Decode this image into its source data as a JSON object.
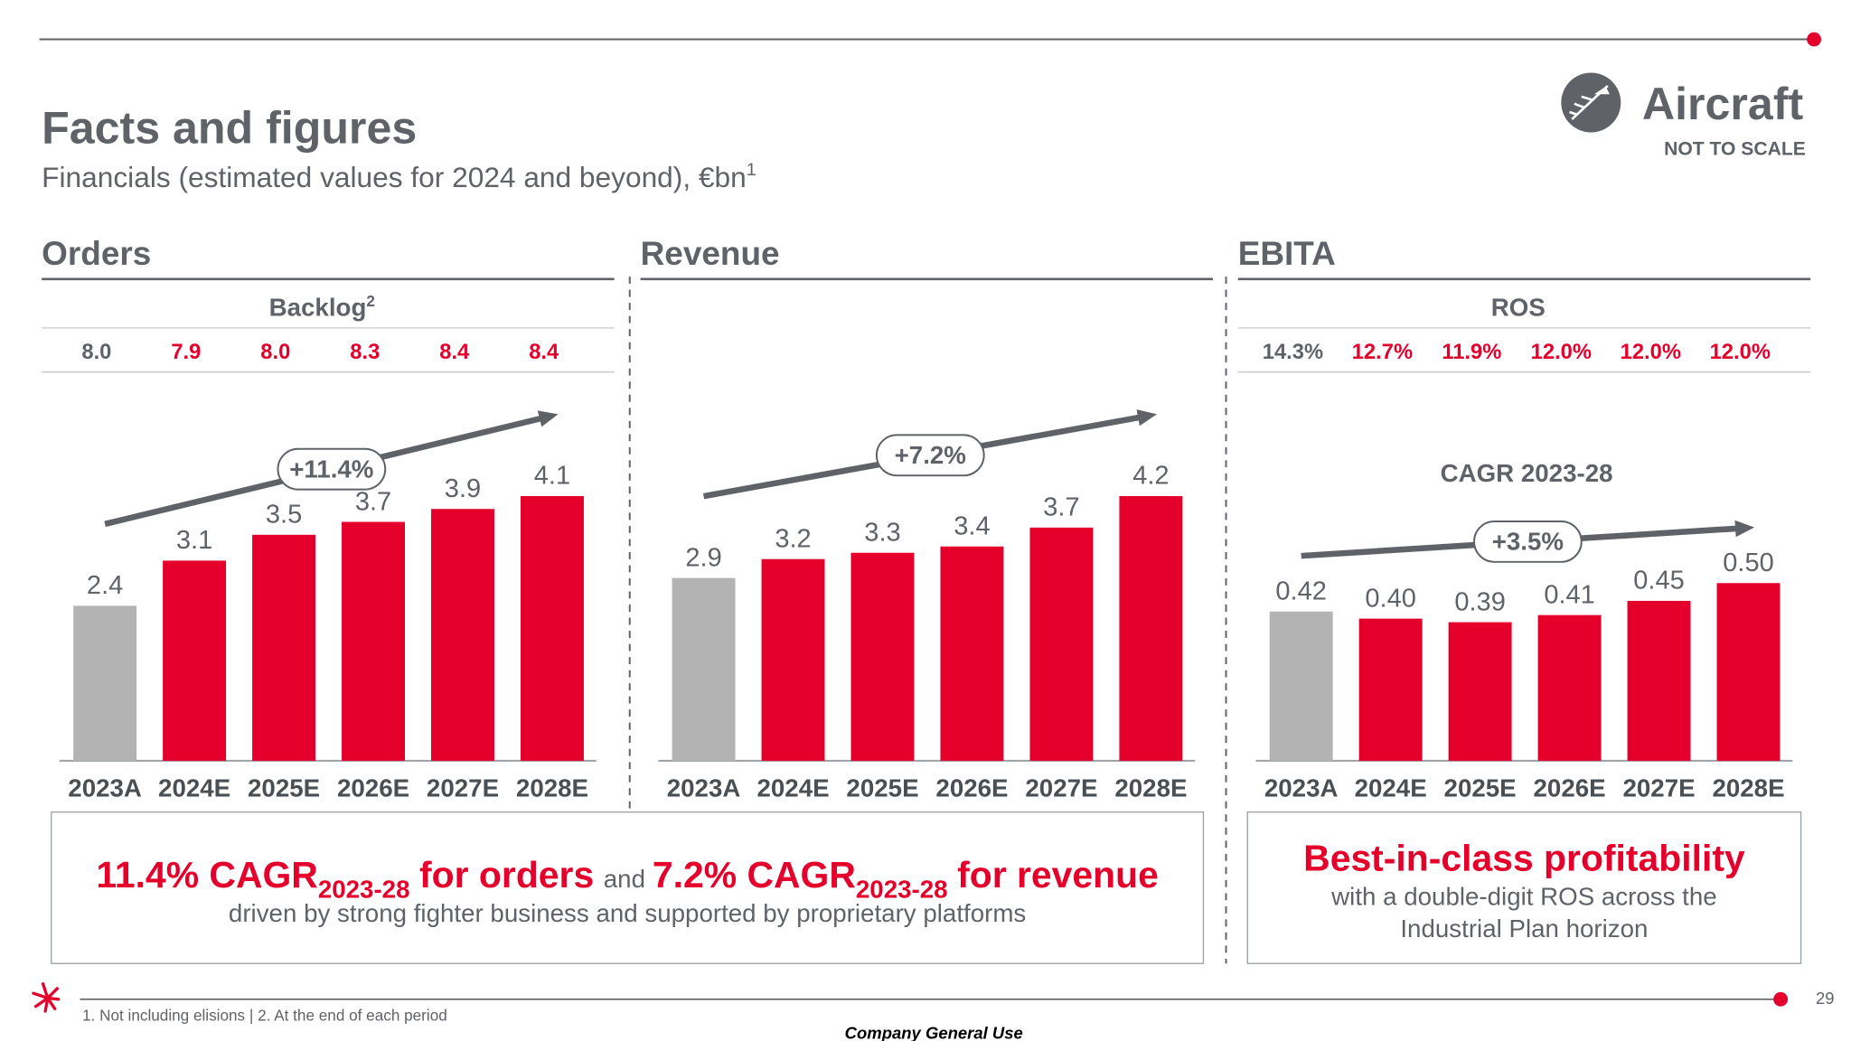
{
  "header": {
    "title": "Facts and figures",
    "subtitle": "Financials (estimated values for 2024 and beyond), €bn",
    "subtitle_note": "1",
    "brand": "Aircraft",
    "brand_note": "NOT TO SCALE"
  },
  "chart_data": [
    {
      "type": "bar",
      "title": "Orders",
      "categories": [
        "2023A",
        "2024E",
        "2025E",
        "2026E",
        "2027E",
        "2028E"
      ],
      "values": [
        2.4,
        3.1,
        3.5,
        3.7,
        3.9,
        4.1
      ],
      "colors": [
        "#b3b3b3",
        "#e4002b",
        "#e4002b",
        "#e4002b",
        "#e4002b",
        "#e4002b"
      ],
      "table": {
        "title": "Backlog",
        "title_note": "2",
        "values": [
          8.0,
          7.9,
          8.0,
          8.3,
          8.4,
          8.4
        ],
        "value_labels": [
          "8.0",
          "7.9",
          "8.0",
          "8.3",
          "8.4",
          "8.4"
        ],
        "colors": [
          "#5f6368",
          "#e4002b",
          "#e4002b",
          "#e4002b",
          "#e4002b",
          "#e4002b"
        ]
      },
      "trend_label": "+11.4%"
    },
    {
      "type": "bar",
      "title": "Revenue",
      "categories": [
        "2023A",
        "2024E",
        "2025E",
        "2026E",
        "2027E",
        "2028E"
      ],
      "values": [
        2.9,
        3.2,
        3.3,
        3.4,
        3.7,
        4.2
      ],
      "colors": [
        "#b3b3b3",
        "#e4002b",
        "#e4002b",
        "#e4002b",
        "#e4002b",
        "#e4002b"
      ],
      "trend_label": "+7.2%"
    },
    {
      "type": "bar",
      "title": "EBITA",
      "subtitle": "CAGR 2023-28",
      "categories": [
        "2023A",
        "2024E",
        "2025E",
        "2026E",
        "2027E",
        "2028E"
      ],
      "values": [
        0.42,
        0.4,
        0.39,
        0.41,
        0.45,
        0.5
      ],
      "value_labels": [
        "0.42",
        "0.40",
        "0.39",
        "0.41",
        "0.45",
        "0.50"
      ],
      "colors": [
        "#b3b3b3",
        "#e4002b",
        "#e4002b",
        "#e4002b",
        "#e4002b",
        "#e4002b"
      ],
      "table": {
        "title": "ROS",
        "values": [
          14.3,
          12.7,
          11.9,
          12.0,
          12.0,
          12.0
        ],
        "value_labels": [
          "14.3%",
          "12.7%",
          "11.9%",
          "12.0%",
          "12.0%",
          "12.0%"
        ],
        "colors": [
          "#5f6368",
          "#e4002b",
          "#e4002b",
          "#e4002b",
          "#e4002b",
          "#e4002b"
        ]
      },
      "trend_label": "+3.5%"
    }
  ],
  "callouts": [
    {
      "parts": [
        "11.4% CAGR",
        "2023-28",
        "for orders",
        "and",
        "7.2% CAGR",
        "2023-28",
        "for revenue"
      ],
      "text": "driven by strong fighter business and supported by proprietary platforms"
    },
    {
      "headline": "Best-in-class profitability",
      "lines": [
        "with a double-digit ROS across the",
        "Industrial Plan horizon"
      ]
    }
  ],
  "footer": {
    "footnote": "1. Not including elisions | 2. At the end of each period",
    "page": "29",
    "classification": "Company General Use"
  }
}
